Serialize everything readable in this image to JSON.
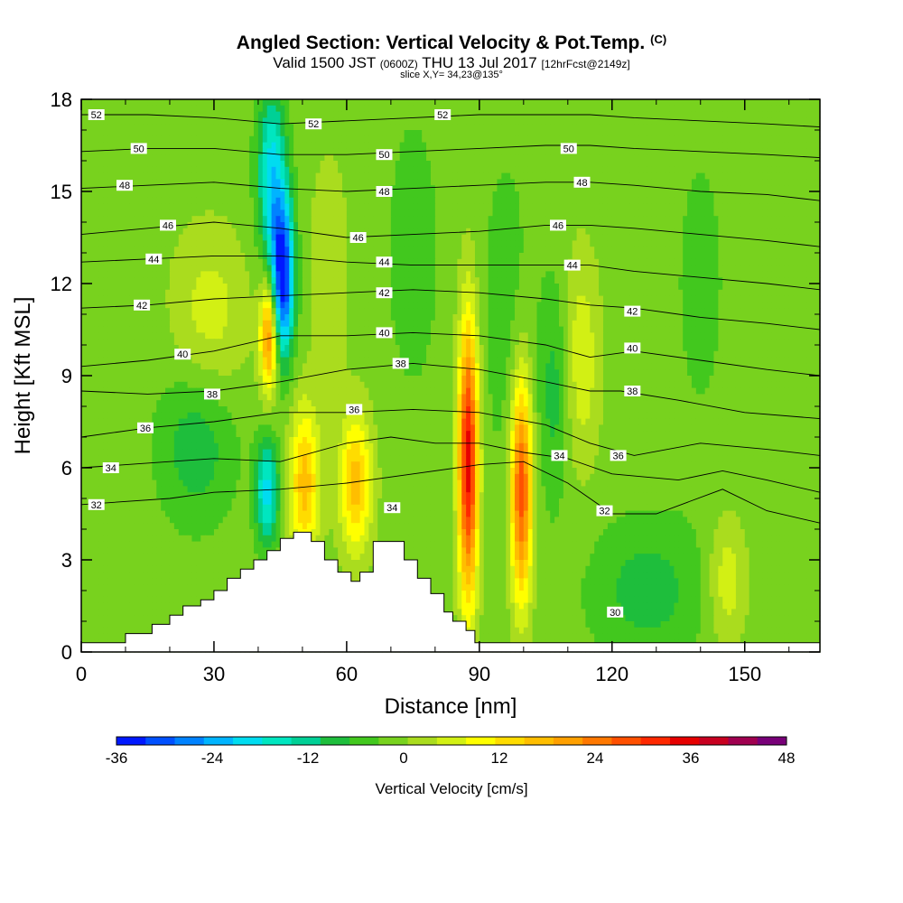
{
  "header": {
    "title_main": "Angled Section: Vertical Velocity & Pot.Temp.",
    "title_unit": "(C)",
    "valid_a": "Valid 1500 JST",
    "valid_z": "(0600Z)",
    "valid_b": "THU 13 Jul 2017",
    "valid_fcst": "[12hrFcst@2149z]",
    "slice": "slice X,Y= 34,23@135°"
  },
  "chart_data": {
    "type": "heatmap",
    "xlabel": "Distance [nm]",
    "ylabel": "Height [Kft MSL]",
    "xlim": [
      0,
      167
    ],
    "ylim": [
      0,
      18
    ],
    "xticks": [
      "0",
      "30",
      "60",
      "90",
      "120",
      "150"
    ],
    "yticks": [
      "0",
      "3",
      "6",
      "9",
      "12",
      "15",
      "18"
    ],
    "colorbar": {
      "label": "Vertical Velocity [cm/s]",
      "tick_labels": [
        "-36",
        "-24",
        "-12",
        "0",
        "12",
        "24",
        "36",
        "48"
      ],
      "min": -36,
      "max": 48,
      "step": 4,
      "colors": [
        "#0018ff",
        "#0050ff",
        "#0082ff",
        "#00b4ff",
        "#00dcf0",
        "#00e6c0",
        "#00d096",
        "#1ebe3c",
        "#42c81e",
        "#78d21e",
        "#aadc1e",
        "#d2f014",
        "#ffff00",
        "#ffdc00",
        "#ffbe00",
        "#ffa000",
        "#ff7800",
        "#ff5000",
        "#ff2800",
        "#e60000",
        "#c80020",
        "#a00050",
        "#780078"
      ]
    },
    "background_velocity": 2,
    "terrain": [
      {
        "x": 0,
        "h": 0.3
      },
      {
        "x": 10,
        "h": 0.6
      },
      {
        "x": 16,
        "h": 0.9
      },
      {
        "x": 20,
        "h": 1.2
      },
      {
        "x": 23,
        "h": 1.5
      },
      {
        "x": 27,
        "h": 1.7
      },
      {
        "x": 30,
        "h": 2.0
      },
      {
        "x": 33,
        "h": 2.4
      },
      {
        "x": 36,
        "h": 2.7
      },
      {
        "x": 39,
        "h": 3.0
      },
      {
        "x": 42,
        "h": 3.3
      },
      {
        "x": 45,
        "h": 3.7
      },
      {
        "x": 48,
        "h": 3.9
      },
      {
        "x": 52,
        "h": 3.6
      },
      {
        "x": 55,
        "h": 3.0
      },
      {
        "x": 58,
        "h": 2.6
      },
      {
        "x": 61,
        "h": 2.3
      },
      {
        "x": 63,
        "h": 2.6
      },
      {
        "x": 66,
        "h": 3.6
      },
      {
        "x": 70,
        "h": 3.6
      },
      {
        "x": 73,
        "h": 3.0
      },
      {
        "x": 76,
        "h": 2.4
      },
      {
        "x": 79,
        "h": 1.9
      },
      {
        "x": 82,
        "h": 1.3
      },
      {
        "x": 84,
        "h": 1.0
      },
      {
        "x": 87,
        "h": 0.7
      },
      {
        "x": 89,
        "h": 0.3
      },
      {
        "x": 167,
        "h": 0.3
      }
    ],
    "velocity_features": [
      {
        "x": 87.5,
        "y": 6.2,
        "sx": 1.6,
        "sy": 3.2,
        "v": 40
      },
      {
        "x": 99.5,
        "y": 5.3,
        "sx": 1.7,
        "sy": 2.6,
        "v": 33
      },
      {
        "x": 42.5,
        "y": 10.3,
        "sx": 1.4,
        "sy": 1.3,
        "v": 28
      },
      {
        "x": 50.5,
        "y": 5.5,
        "sx": 2.4,
        "sy": 1.8,
        "v": 20
      },
      {
        "x": 62.0,
        "y": 5.5,
        "sx": 2.6,
        "sy": 1.6,
        "v": 20
      },
      {
        "x": 29.0,
        "y": 11.0,
        "sx": 6.0,
        "sy": 2.0,
        "v": 8
      },
      {
        "x": 113.0,
        "y": 9.5,
        "sx": 3.0,
        "sy": 2.5,
        "v": 9
      },
      {
        "x": 146.0,
        "y": 2.3,
        "sx": 3.0,
        "sy": 1.5,
        "v": 9
      },
      {
        "x": 56.0,
        "y": 12.5,
        "sx": 3.0,
        "sy": 2.5,
        "v": 6
      },
      {
        "x": 45.5,
        "y": 12.2,
        "sx": 1.8,
        "sy": 1.8,
        "v": -38
      },
      {
        "x": 43.0,
        "y": 15.5,
        "sx": 2.2,
        "sy": 2.0,
        "v": -20
      },
      {
        "x": 42.0,
        "y": 5.2,
        "sx": 1.8,
        "sy": 1.2,
        "v": -20
      },
      {
        "x": 26.0,
        "y": 6.8,
        "sx": 6.0,
        "sy": 1.8,
        "v": -9
      },
      {
        "x": 96.0,
        "y": 11.0,
        "sx": 4.0,
        "sy": 4.0,
        "v": -4
      },
      {
        "x": 128.0,
        "y": 2.0,
        "sx": 9.0,
        "sy": 1.6,
        "v": -8
      },
      {
        "x": 140.0,
        "y": 12.0,
        "sx": 5.0,
        "sy": 4.0,
        "v": -3
      },
      {
        "x": 75.0,
        "y": 13.0,
        "sx": 4.0,
        "sy": 3.0,
        "v": -5
      },
      {
        "x": 107.0,
        "y": 8.5,
        "sx": 2.5,
        "sy": 2.5,
        "v": -8
      }
    ],
    "isentropes": [
      {
        "theta": 32,
        "pts": [
          [
            0,
            4.8
          ],
          [
            20,
            5.0
          ],
          [
            30,
            5.2
          ],
          [
            45,
            5.3
          ],
          [
            60,
            5.5
          ],
          [
            75,
            5.8
          ],
          [
            90,
            6.1
          ],
          [
            100,
            6.2
          ],
          [
            110,
            5.5
          ],
          [
            120,
            4.5
          ],
          [
            130,
            4.5
          ],
          [
            145,
            5.3
          ],
          [
            155,
            4.6
          ],
          [
            167,
            4.2
          ]
        ]
      },
      {
        "theta": 34,
        "pts": [
          [
            0,
            6.0
          ],
          [
            20,
            6.2
          ],
          [
            30,
            6.3
          ],
          [
            45,
            6.2
          ],
          [
            60,
            6.8
          ],
          [
            70,
            7.0
          ],
          [
            80,
            6.8
          ],
          [
            90,
            6.8
          ],
          [
            100,
            6.5
          ],
          [
            110,
            6.3
          ],
          [
            120,
            5.8
          ],
          [
            135,
            5.6
          ],
          [
            145,
            5.9
          ],
          [
            155,
            5.6
          ],
          [
            167,
            5.2
          ]
        ]
      },
      {
        "theta": 36,
        "pts": [
          [
            0,
            7.0
          ],
          [
            15,
            7.3
          ],
          [
            30,
            7.5
          ],
          [
            45,
            7.8
          ],
          [
            60,
            7.8
          ],
          [
            75,
            7.9
          ],
          [
            90,
            7.8
          ],
          [
            105,
            7.4
          ],
          [
            115,
            6.8
          ],
          [
            125,
            6.4
          ],
          [
            140,
            6.8
          ],
          [
            155,
            6.6
          ],
          [
            167,
            6.4
          ]
        ]
      },
      {
        "theta": 38,
        "pts": [
          [
            0,
            8.5
          ],
          [
            15,
            8.4
          ],
          [
            30,
            8.5
          ],
          [
            45,
            8.8
          ],
          [
            60,
            9.2
          ],
          [
            75,
            9.4
          ],
          [
            90,
            9.2
          ],
          [
            105,
            8.8
          ],
          [
            115,
            8.5
          ],
          [
            122,
            8.5
          ],
          [
            135,
            8.2
          ],
          [
            150,
            7.8
          ],
          [
            167,
            7.6
          ]
        ]
      },
      {
        "theta": 40,
        "pts": [
          [
            0,
            9.3
          ],
          [
            15,
            9.5
          ],
          [
            30,
            9.8
          ],
          [
            45,
            10.3
          ],
          [
            60,
            10.3
          ],
          [
            75,
            10.4
          ],
          [
            90,
            10.3
          ],
          [
            105,
            10.0
          ],
          [
            115,
            9.6
          ],
          [
            125,
            9.8
          ],
          [
            140,
            9.5
          ],
          [
            155,
            9.2
          ],
          [
            167,
            9.0
          ]
        ]
      },
      {
        "theta": 42,
        "pts": [
          [
            0,
            11.2
          ],
          [
            15,
            11.3
          ],
          [
            30,
            11.5
          ],
          [
            45,
            11.6
          ],
          [
            60,
            11.7
          ],
          [
            75,
            11.8
          ],
          [
            90,
            11.7
          ],
          [
            105,
            11.5
          ],
          [
            115,
            11.3
          ],
          [
            125,
            11.2
          ],
          [
            140,
            10.9
          ],
          [
            155,
            10.7
          ],
          [
            167,
            10.5
          ]
        ]
      },
      {
        "theta": 44,
        "pts": [
          [
            0,
            12.7
          ],
          [
            15,
            12.8
          ],
          [
            30,
            12.9
          ],
          [
            45,
            12.9
          ],
          [
            60,
            12.7
          ],
          [
            75,
            12.6
          ],
          [
            90,
            12.6
          ],
          [
            105,
            12.6
          ],
          [
            115,
            12.6
          ],
          [
            125,
            12.4
          ],
          [
            140,
            12.2
          ],
          [
            155,
            12.0
          ],
          [
            167,
            11.8
          ]
        ]
      },
      {
        "theta": 46,
        "pts": [
          [
            0,
            13.6
          ],
          [
            15,
            13.8
          ],
          [
            30,
            14.0
          ],
          [
            45,
            13.8
          ],
          [
            60,
            13.5
          ],
          [
            75,
            13.6
          ],
          [
            90,
            13.7
          ],
          [
            105,
            13.9
          ],
          [
            115,
            13.9
          ],
          [
            125,
            13.8
          ],
          [
            140,
            13.6
          ],
          [
            155,
            13.4
          ],
          [
            167,
            13.2
          ]
        ]
      },
      {
        "theta": 48,
        "pts": [
          [
            0,
            15.1
          ],
          [
            15,
            15.2
          ],
          [
            30,
            15.3
          ],
          [
            45,
            15.1
          ],
          [
            60,
            15.0
          ],
          [
            75,
            15.1
          ],
          [
            90,
            15.2
          ],
          [
            105,
            15.3
          ],
          [
            115,
            15.3
          ],
          [
            125,
            15.2
          ],
          [
            140,
            15.0
          ],
          [
            155,
            14.9
          ],
          [
            167,
            14.7
          ]
        ]
      },
      {
        "theta": 50,
        "pts": [
          [
            0,
            16.3
          ],
          [
            15,
            16.4
          ],
          [
            30,
            16.4
          ],
          [
            45,
            16.2
          ],
          [
            60,
            16.2
          ],
          [
            75,
            16.3
          ],
          [
            90,
            16.4
          ],
          [
            105,
            16.5
          ],
          [
            115,
            16.5
          ],
          [
            125,
            16.4
          ],
          [
            140,
            16.3
          ],
          [
            155,
            16.2
          ],
          [
            167,
            16.1
          ]
        ]
      },
      {
        "theta": 52,
        "pts": [
          [
            0,
            17.5
          ],
          [
            15,
            17.5
          ],
          [
            30,
            17.4
          ],
          [
            45,
            17.2
          ],
          [
            60,
            17.3
          ],
          [
            75,
            17.4
          ],
          [
            90,
            17.5
          ],
          [
            105,
            17.5
          ],
          [
            115,
            17.5
          ],
          [
            125,
            17.4
          ],
          [
            140,
            17.3
          ],
          [
            155,
            17.2
          ],
          [
            167,
            17.1
          ]
        ]
      }
    ],
    "contour_labels": [
      {
        "text": "52",
        "x": 3.4,
        "y": 17.5
      },
      {
        "text": "52",
        "x": 52.5,
        "y": 17.2
      },
      {
        "text": "52",
        "x": 81.7,
        "y": 17.5
      },
      {
        "text": "50",
        "x": 13.0,
        "y": 16.4
      },
      {
        "text": "50",
        "x": 68.5,
        "y": 16.2
      },
      {
        "text": "50",
        "x": 110.2,
        "y": 16.4
      },
      {
        "text": "48",
        "x": 9.8,
        "y": 15.2
      },
      {
        "text": "48",
        "x": 68.5,
        "y": 15.0
      },
      {
        "text": "48",
        "x": 113.2,
        "y": 15.3
      },
      {
        "text": "46",
        "x": 19.6,
        "y": 13.9
      },
      {
        "text": "46",
        "x": 62.6,
        "y": 13.5
      },
      {
        "text": "46",
        "x": 107.8,
        "y": 13.9
      },
      {
        "text": "44",
        "x": 16.4,
        "y": 12.8
      },
      {
        "text": "44",
        "x": 68.5,
        "y": 12.7
      },
      {
        "text": "44",
        "x": 111.0,
        "y": 12.6
      },
      {
        "text": "42",
        "x": 13.7,
        "y": 11.3
      },
      {
        "text": "42",
        "x": 68.5,
        "y": 11.7
      },
      {
        "text": "42",
        "x": 124.6,
        "y": 11.1
      },
      {
        "text": "40",
        "x": 22.9,
        "y": 9.7
      },
      {
        "text": "40",
        "x": 68.5,
        "y": 10.4
      },
      {
        "text": "40",
        "x": 124.6,
        "y": 9.9
      },
      {
        "text": "38",
        "x": 29.6,
        "y": 8.4
      },
      {
        "text": "38",
        "x": 72.2,
        "y": 9.4
      },
      {
        "text": "38",
        "x": 124.6,
        "y": 8.5
      },
      {
        "text": "36",
        "x": 14.5,
        "y": 7.3
      },
      {
        "text": "36",
        "x": 61.7,
        "y": 7.9
      },
      {
        "text": "36",
        "x": 121.4,
        "y": 6.4
      },
      {
        "text": "34",
        "x": 6.7,
        "y": 6.0
      },
      {
        "text": "34",
        "x": 70.3,
        "y": 4.7
      },
      {
        "text": "34",
        "x": 108.1,
        "y": 6.4
      },
      {
        "text": "32",
        "x": 3.4,
        "y": 4.8
      },
      {
        "text": "32",
        "x": 118.3,
        "y": 4.6
      },
      {
        "text": "30",
        "x": 120.7,
        "y": 1.3
      }
    ]
  }
}
